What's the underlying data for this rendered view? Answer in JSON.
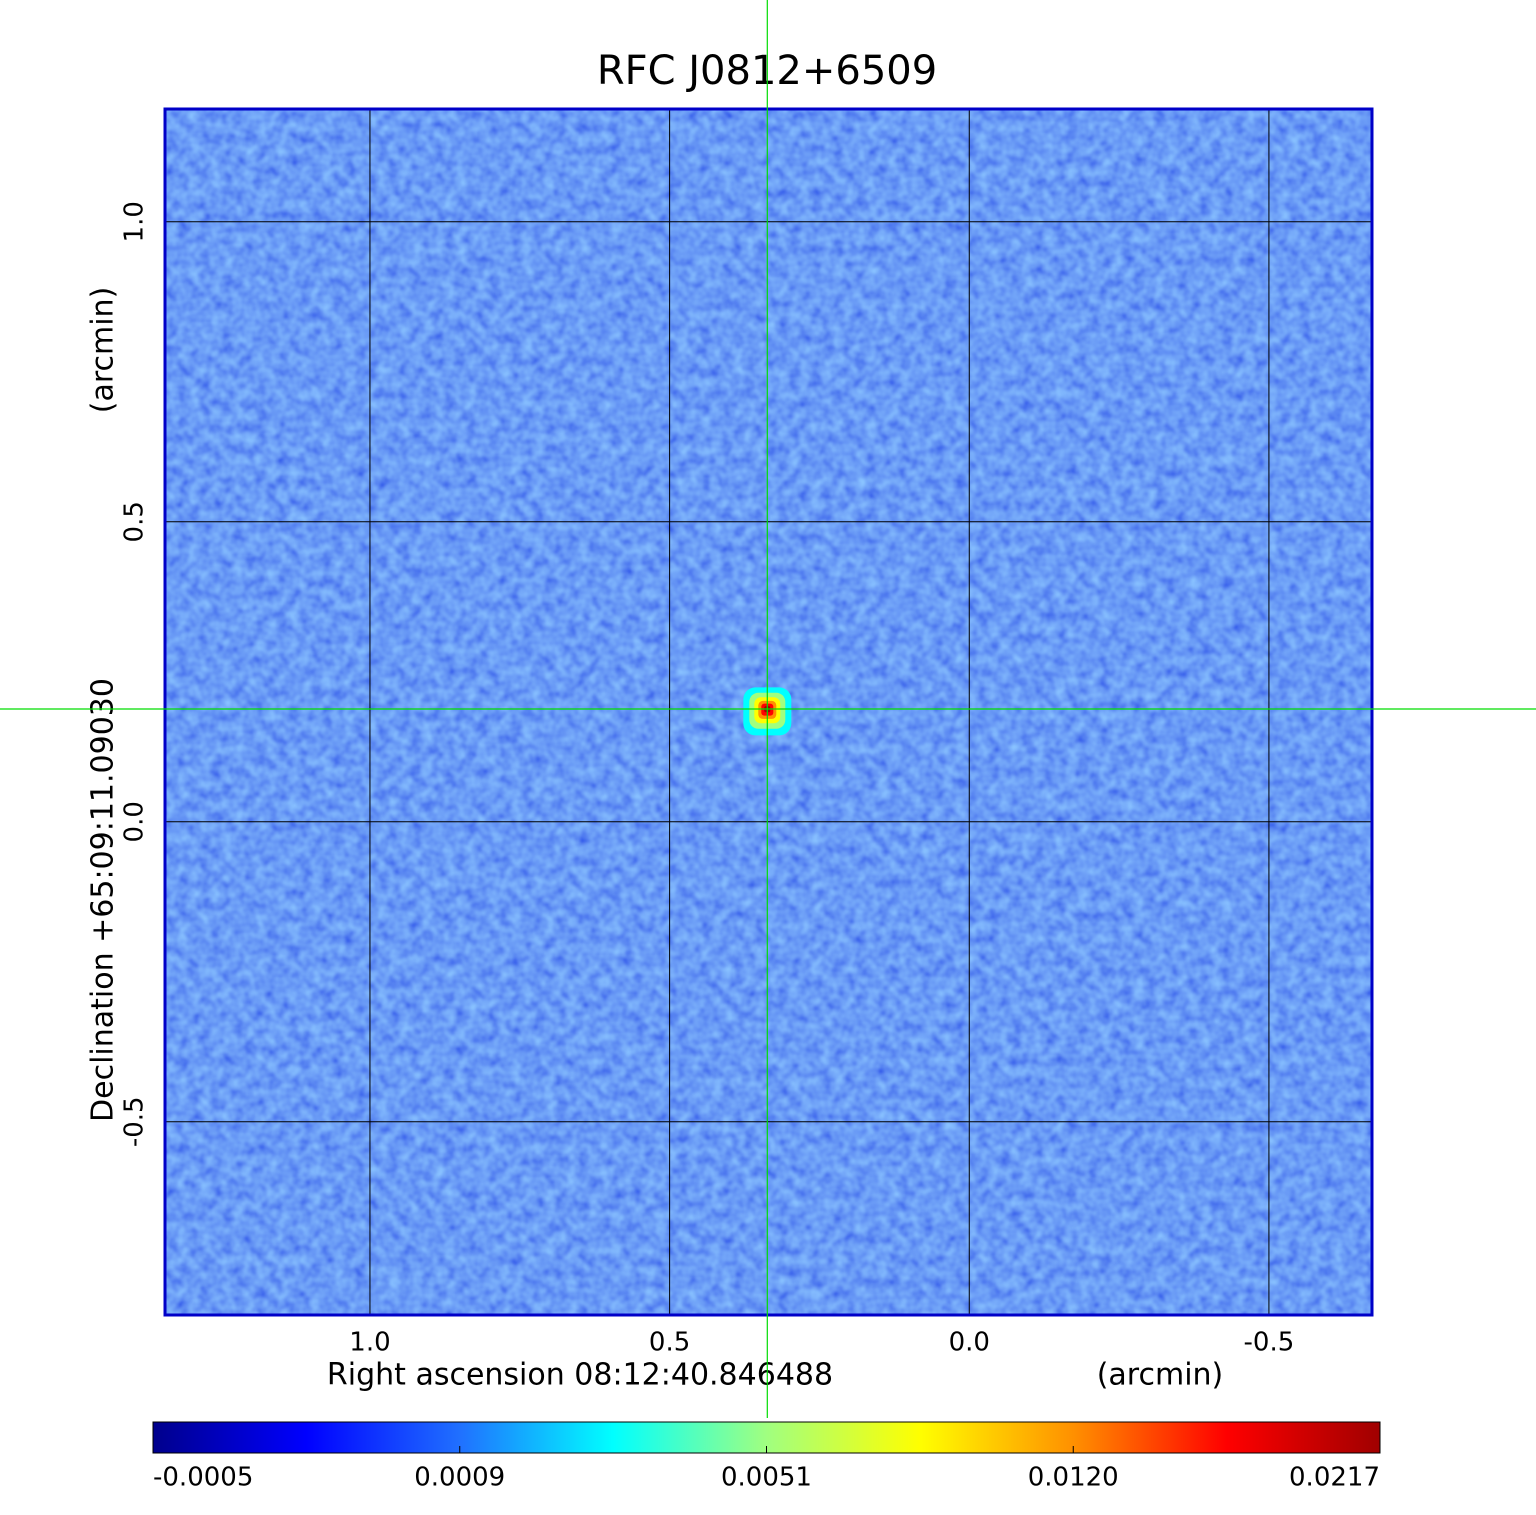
{
  "chart_data": {
    "type": "image",
    "title": "RFC J0812+6509",
    "title_color": "#1414c8",
    "x_label": "Right ascension  08:12:40.846488",
    "x_unit": "(arcmin)",
    "y_label": "Declination  +65:09:11.09030",
    "y_unit": "(arcmin)",
    "xlim": [
      1.342,
      -0.672
    ],
    "ylim": [
      -0.822,
      1.188
    ],
    "xticks": [
      {
        "value": 1,
        "label": "1.0"
      },
      {
        "value": 0.5,
        "label": "0.5"
      },
      {
        "value": 0,
        "label": "0.0"
      },
      {
        "value": -0.5,
        "label": "-0.5"
      }
    ],
    "yticks": [
      {
        "value": 1,
        "label": "1.0"
      },
      {
        "value": 0.5,
        "label": "0.5"
      },
      {
        "value": 0,
        "label": "0.0"
      },
      {
        "value": -0.5,
        "label": "-0.5"
      }
    ],
    "grid": true,
    "frame_color": "#0000c8",
    "crosshair": {
      "x": 0.337,
      "y": 0.188,
      "color": "#00dd00"
    },
    "colorbar": {
      "ticks": [
        -0.0005,
        0.0009,
        0.0051,
        {
          "value": 0.012,
          "label": "0.0120"
        },
        0.0217
      ],
      "colors": [
        "#00008c",
        "#0000ff",
        "#2070ff",
        "#00ffff",
        "#a0ff80",
        "#ffff00",
        "#ff9000",
        "#ff0000",
        "#a00000"
      ]
    }
  }
}
